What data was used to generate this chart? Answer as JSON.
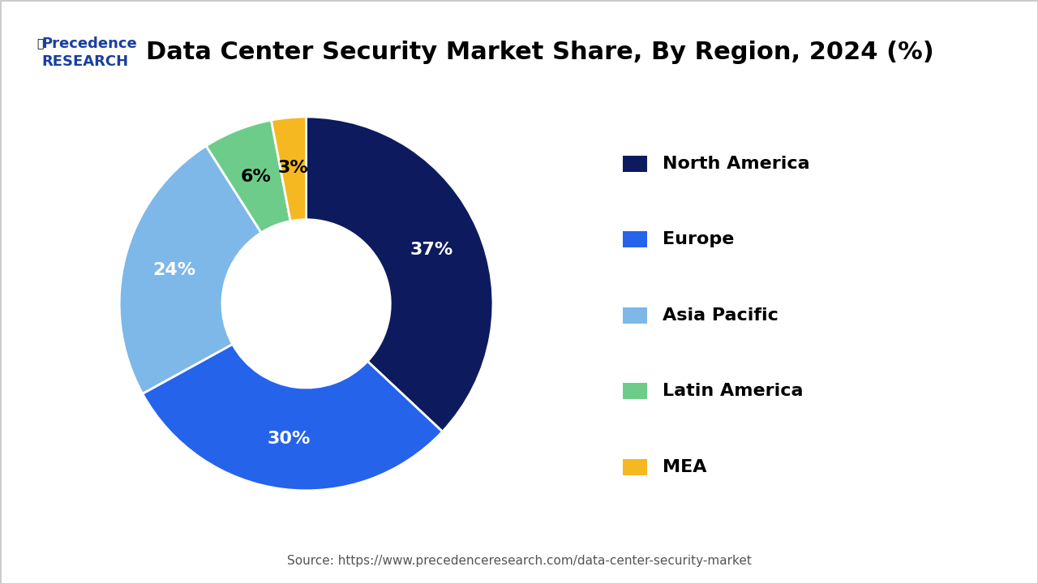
{
  "title": "Data Center Security Market Share, By Region, 2024 (%)",
  "labels": [
    "North America",
    "Europe",
    "Asia Pacific",
    "Latin America",
    "MEA"
  ],
  "values": [
    37,
    30,
    24,
    6,
    3
  ],
  "colors": [
    "#0d1b5e",
    "#2563eb",
    "#7db8e8",
    "#6dcc8a",
    "#f5b820"
  ],
  "label_colors": [
    "white",
    "white",
    "white",
    "black",
    "black"
  ],
  "source": "Source: https://www.precedenceresearch.com/data-center-security-market",
  "logo_text_top": "Precedence",
  "logo_text_bottom": "RESEARCH",
  "background_color": "#ffffff",
  "border_color": "#cccccc",
  "title_fontsize": 22,
  "legend_fontsize": 16,
  "pct_fontsize": 16
}
